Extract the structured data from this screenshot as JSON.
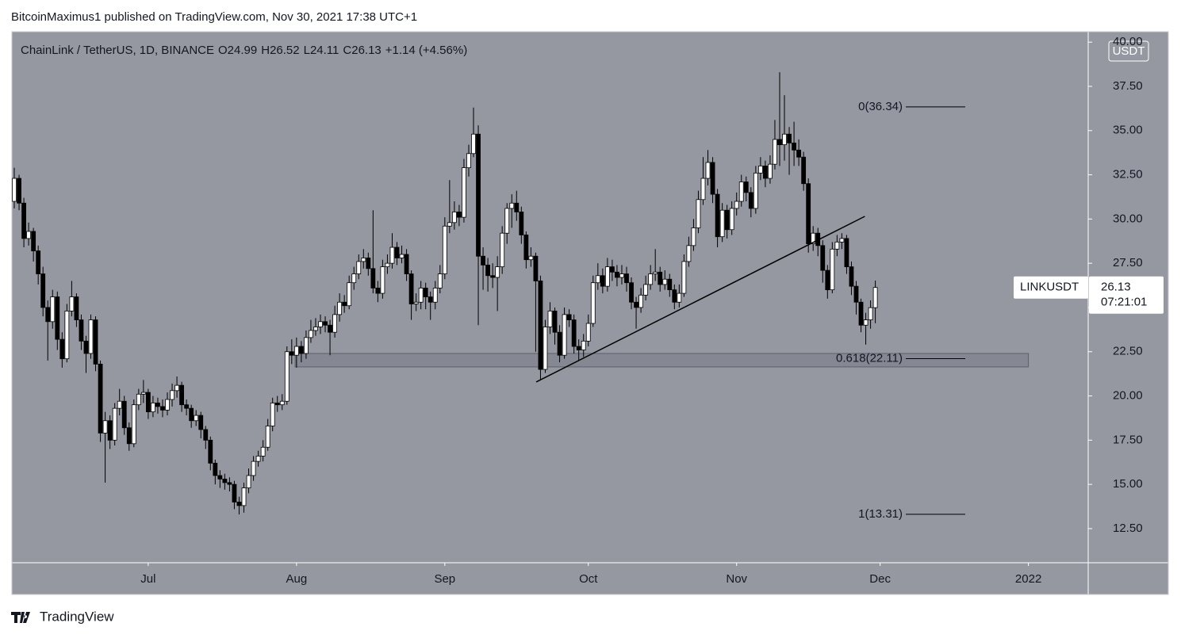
{
  "header": {
    "publisher": "BitcoinMaximus1 published on TradingView.com, Nov 30, 2021 17:38 UTC+1"
  },
  "footer": {
    "brand": "TradingView"
  },
  "chart_data": {
    "type": "candlestick",
    "title": "ChainLink / TetherUS, 1D, BINANCE",
    "ohlc": [
      {
        "label": "O",
        "value": 24.99
      },
      {
        "label": "H",
        "value": 26.52
      },
      {
        "label": "L",
        "value": 24.11
      },
      {
        "label": "C",
        "value": 26.13
      }
    ],
    "change": "+1.14 (+4.56%)",
    "currency": "USDT",
    "up_color": "#ffffff",
    "down_color": "#000000",
    "wick_color": "#000000",
    "background": "#9598a1",
    "xlim": [
      -0.5,
      224.5
    ],
    "xticks": [
      {
        "value": 28,
        "label": "Jul"
      },
      {
        "value": 59,
        "label": "Aug"
      },
      {
        "value": 90,
        "label": "Sep"
      },
      {
        "value": 120,
        "label": "Oct"
      },
      {
        "value": 151,
        "label": "Nov"
      },
      {
        "value": 181,
        "label": "Dec"
      },
      {
        "value": 212,
        "label": "2022"
      }
    ],
    "ylim": [
      10.57,
      40.59
    ],
    "yticks": [
      {
        "value": 12.5,
        "label": "12.50"
      },
      {
        "value": 15,
        "label": "15.00"
      },
      {
        "value": 17.5,
        "label": "17.50"
      },
      {
        "value": 20,
        "label": "20.00"
      },
      {
        "value": 22.5,
        "label": "22.50"
      },
      {
        "value": 25,
        "label": "25.00"
      },
      {
        "value": 27.5,
        "label": "27.50"
      },
      {
        "value": 30,
        "label": "30.00"
      },
      {
        "value": 32.5,
        "label": "32.50"
      },
      {
        "value": 35,
        "label": "35.00"
      },
      {
        "value": 37.5,
        "label": "37.50"
      },
      {
        "value": 40,
        "label": "40.00"
      }
    ],
    "open": [
      31.0,
      32.3,
      30.9,
      28.9,
      29.3,
      28.2,
      26.9,
      25.0,
      24.2,
      25.6,
      23.2,
      22.1,
      24.8,
      25.6,
      24.3,
      23.1,
      22.4,
      24.3,
      21.8,
      17.9,
      18.6,
      17.5,
      19.3,
      19.7,
      18.2,
      17.3,
      19.5,
      20.1,
      20.2,
      19.1,
      19.6,
      19.4,
      19.2,
      19.8,
      20.3,
      20.6,
      19.5,
      19.3,
      18.6,
      18.9,
      18.1,
      17.5,
      16.2,
      15.5,
      15.3,
      15.1,
      15.0,
      14.0,
      13.8,
      14.8,
      15.5,
      16.3,
      16.6,
      17.1,
      18.3,
      19.6,
      19.5,
      19.7,
      22.5,
      22.3,
      22.8,
      22.4,
      23.3,
      23.7,
      23.9,
      24.2,
      24.0,
      23.6,
      24.6,
      25.3,
      25.1,
      26.4,
      26.9,
      27.6,
      27.8,
      27.2,
      26.1,
      25.8,
      27.3,
      27.5,
      28.4,
      27.8,
      28.0,
      26.9,
      25.2,
      25.3,
      26.1,
      25.6,
      25.3,
      26.1,
      26.9,
      29.6,
      29.8,
      30.4,
      30.1,
      32.9,
      33.7,
      34.8,
      27.9,
      27.4,
      26.8,
      26.7,
      27.3,
      29.2,
      30.6,
      30.9,
      30.4,
      29.1,
      27.7,
      27.9,
      26.5,
      21.5,
      23.9,
      24.8,
      23.6,
      22.3,
      24.6,
      24.3,
      22.8,
      22.6,
      23.1,
      24.1,
      26.4,
      26.8,
      26.2,
      27.3,
      27.0,
      26.7,
      26.9,
      26.4,
      25.3,
      25.0,
      25.7,
      26.3,
      26.9,
      27.0,
      26.3,
      26.6,
      26.0,
      25.3,
      25.8,
      27.6,
      28.5,
      29.5,
      31.1,
      32.3,
      33.2,
      31.4,
      29.0,
      30.5,
      29.4,
      30.6,
      31.0,
      32.1,
      31.5,
      30.6,
      32.6,
      33.0,
      32.3,
      33.1,
      34.5,
      34.2,
      34.8,
      34.3,
      33.9,
      33.5,
      32.0,
      28.6,
      29.2,
      28.5,
      27.1,
      26.0,
      28.3,
      28.7,
      28.9,
      27.3,
      26.2,
      25.3,
      24.0,
      24.3,
      24.99
    ],
    "high": [
      32.9,
      32.5,
      31.2,
      29.8,
      29.5,
      28.5,
      27.3,
      25.4,
      26.0,
      25.9,
      23.6,
      25.2,
      26.5,
      25.8,
      24.6,
      23.4,
      24.6,
      24.5,
      22.0,
      19.1,
      18.9,
      19.6,
      20.4,
      20.0,
      18.5,
      19.8,
      20.4,
      20.9,
      20.4,
      20.0,
      19.9,
      19.8,
      20.2,
      20.7,
      21.1,
      20.8,
      19.8,
      19.5,
      19.2,
      19.1,
      18.3,
      17.7,
      16.4,
      15.8,
      15.6,
      15.4,
      15.2,
      14.3,
      15.1,
      15.9,
      16.6,
      16.9,
      17.5,
      18.7,
      19.9,
      20.0,
      20.1,
      22.8,
      23.2,
      23.3,
      23.1,
      23.7,
      24.3,
      24.4,
      24.6,
      24.5,
      24.3,
      25.1,
      25.8,
      25.7,
      26.8,
      27.3,
      28.0,
      28.3,
      28.1,
      30.5,
      26.5,
      27.7,
      28.0,
      29.2,
      28.7,
      28.5,
      28.3,
      27.1,
      25.8,
      26.5,
      26.4,
      25.9,
      26.5,
      27.4,
      30.1,
      32.2,
      31.0,
      30.8,
      33.4,
      34.2,
      36.3,
      35.3,
      28.4,
      27.8,
      27.5,
      27.9,
      29.6,
      30.9,
      31.4,
      31.6,
      30.7,
      29.3,
      28.4,
      28.1,
      26.8,
      24.3,
      25.3,
      25.0,
      24.0,
      25.0,
      24.9,
      24.6,
      23.2,
      23.5,
      24.6,
      26.8,
      27.5,
      27.2,
      27.8,
      27.7,
      27.4,
      27.4,
      27.3,
      26.7,
      25.6,
      26.1,
      26.8,
      27.4,
      28.3,
      27.3,
      27.1,
      26.9,
      26.3,
      26.3,
      28.0,
      29.0,
      30.0,
      31.6,
      33.5,
      33.9,
      33.5,
      31.7,
      30.9,
      30.8,
      31.0,
      31.5,
      32.5,
      32.4,
      31.8,
      33.0,
      33.5,
      33.3,
      33.6,
      35.6,
      38.3,
      37.0,
      35.2,
      35.5,
      34.5,
      33.8,
      32.3,
      29.6,
      29.5,
      28.8,
      27.4,
      28.7,
      29.1,
      29.2,
      29.1,
      27.6,
      26.5,
      25.5,
      24.7,
      25.4,
      26.52
    ],
    "low": [
      30.6,
      30.5,
      28.4,
      28.5,
      27.6,
      26.3,
      24.5,
      22.0,
      23.8,
      22.6,
      21.6,
      21.9,
      24.5,
      23.9,
      22.6,
      21.3,
      22.1,
      21.4,
      17.4,
      15.1,
      17.0,
      17.2,
      18.9,
      17.8,
      16.9,
      17.1,
      19.2,
      19.6,
      18.7,
      18.8,
      19.0,
      18.8,
      18.9,
      19.4,
      19.9,
      19.1,
      18.9,
      18.2,
      18.3,
      17.6,
      17.0,
      15.8,
      15.0,
      14.8,
      14.7,
      14.6,
      13.6,
      13.3,
      13.4,
      14.5,
      15.2,
      16.0,
      16.3,
      16.9,
      18.0,
      19.1,
      19.2,
      19.5,
      21.8,
      21.6,
      21.9,
      22.1,
      23.0,
      23.4,
      23.5,
      23.6,
      22.3,
      23.3,
      24.2,
      24.7,
      24.9,
      26.0,
      26.6,
      27.2,
      26.8,
      25.8,
      25.3,
      25.5,
      26.9,
      27.2,
      27.4,
      27.5,
      26.5,
      24.3,
      24.8,
      24.9,
      24.9,
      24.3,
      24.9,
      25.8,
      26.6,
      29.2,
      29.4,
      29.6,
      29.8,
      32.4,
      33.5,
      24.0,
      26.0,
      25.9,
      26.1,
      24.8,
      26.9,
      28.6,
      29.5,
      29.9,
      28.6,
      27.2,
      27.3,
      22.5,
      20.9,
      21.3,
      23.5,
      22.9,
      21.9,
      22.1,
      23.9,
      22.4,
      22.0,
      22.2,
      22.8,
      23.9,
      26.0,
      25.8,
      25.9,
      26.5,
      26.2,
      26.3,
      25.9,
      24.9,
      23.8,
      24.7,
      25.4,
      26.0,
      26.5,
      25.9,
      26.0,
      25.6,
      24.9,
      25.0,
      25.6,
      27.3,
      28.2,
      29.2,
      30.8,
      31.9,
      30.9,
      28.4,
      28.7,
      28.9,
      29.1,
      30.2,
      30.7,
      31.0,
      30.1,
      30.3,
      32.2,
      31.8,
      32.0,
      32.8,
      33.0,
      33.3,
      32.5,
      33.0,
      33.0,
      31.6,
      28.1,
      28.2,
      27.9,
      26.4,
      25.5,
      25.8,
      27.9,
      28.3,
      26.9,
      25.7,
      24.6,
      23.6,
      22.9,
      23.8,
      24.11
    ],
    "close": [
      32.3,
      30.9,
      28.9,
      29.3,
      28.2,
      26.9,
      25.0,
      24.2,
      25.6,
      23.2,
      22.1,
      24.8,
      25.6,
      24.3,
      23.1,
      22.4,
      24.3,
      21.8,
      17.9,
      18.6,
      17.5,
      19.3,
      19.7,
      18.2,
      17.3,
      19.5,
      20.1,
      20.2,
      19.1,
      19.6,
      19.4,
      19.2,
      19.8,
      20.3,
      20.6,
      19.5,
      19.3,
      18.6,
      18.9,
      18.1,
      17.5,
      16.2,
      15.5,
      15.3,
      15.1,
      15.0,
      14.0,
      13.8,
      14.8,
      15.5,
      16.3,
      16.6,
      17.1,
      18.3,
      19.6,
      19.5,
      19.7,
      22.5,
      22.3,
      22.8,
      22.4,
      23.3,
      23.7,
      23.9,
      24.2,
      24.0,
      23.6,
      24.6,
      25.3,
      25.1,
      26.4,
      26.9,
      27.6,
      27.8,
      27.2,
      26.1,
      25.8,
      27.3,
      27.5,
      28.4,
      27.8,
      28.0,
      26.9,
      25.2,
      25.3,
      26.1,
      25.6,
      25.3,
      26.1,
      26.9,
      29.6,
      29.8,
      30.4,
      30.1,
      32.9,
      33.7,
      34.8,
      27.9,
      27.4,
      26.8,
      26.7,
      27.3,
      29.2,
      30.6,
      30.9,
      30.4,
      29.1,
      27.7,
      27.9,
      26.5,
      21.5,
      23.9,
      24.8,
      23.6,
      22.3,
      24.6,
      24.3,
      22.8,
      22.6,
      23.1,
      24.1,
      26.4,
      26.8,
      26.2,
      27.3,
      27.0,
      26.7,
      26.9,
      26.4,
      25.3,
      25.0,
      25.7,
      26.3,
      26.9,
      27.0,
      26.3,
      26.6,
      26.0,
      25.3,
      25.8,
      27.6,
      28.5,
      29.5,
      31.1,
      32.3,
      33.2,
      31.4,
      29.0,
      30.5,
      29.4,
      30.6,
      31.0,
      32.1,
      31.5,
      30.6,
      32.6,
      33.0,
      32.3,
      33.1,
      34.5,
      34.2,
      34.8,
      34.3,
      33.9,
      33.5,
      32.0,
      28.6,
      29.2,
      28.5,
      27.1,
      26.0,
      28.3,
      28.7,
      28.9,
      27.3,
      26.2,
      25.3,
      24.0,
      24.3,
      24.99,
      26.13
    ],
    "fib_levels": [
      {
        "value": 36.34,
        "label": "0(36.34)"
      },
      {
        "value": 22.11,
        "label": "0.618(22.11)"
      },
      {
        "value": 13.31,
        "label": "1(13.31)"
      }
    ],
    "trendline": {
      "x": [
        109.1,
        177.8
      ],
      "y": [
        20.79,
        30.15
      ]
    },
    "support_zone": {
      "x": [
        58.7,
        212
      ],
      "y": [
        21.64,
        22.4
      ]
    },
    "last_price": {
      "symbol": "LINKUSDT",
      "value": 26.13,
      "countdown": "07:21:01"
    }
  }
}
